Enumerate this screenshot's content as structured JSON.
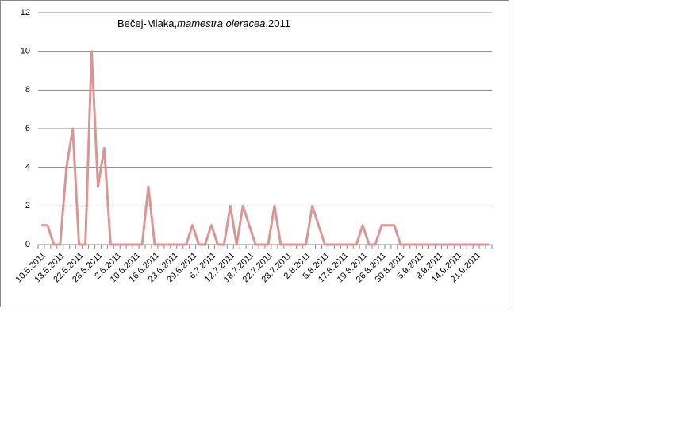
{
  "chart_data": {
    "type": "line",
    "title": [
      "Bečej-Mlaka,",
      "mamestra oleracea",
      ",2011"
    ],
    "categories": [
      "10.5.2011",
      null,
      null,
      "13.5.2011",
      null,
      null,
      "22.5.2011",
      null,
      null,
      "28.5.2011",
      null,
      null,
      "2.6.2011",
      null,
      null,
      "10.6.2011",
      null,
      null,
      "16.6.2011",
      null,
      null,
      "23.6.2011",
      null,
      null,
      "29.6.2011",
      null,
      null,
      "6.7.2011",
      null,
      null,
      "12.7.2011",
      null,
      null,
      "18.7.2011",
      null,
      null,
      "22.7.2011",
      null,
      null,
      "28.7.2011",
      null,
      null,
      "2.8.2011",
      null,
      null,
      "5.8.2011",
      null,
      null,
      "17.8.2011",
      null,
      null,
      "19.8.2011",
      null,
      null,
      "26.8.2011",
      null,
      null,
      "30.8.2011",
      null,
      null,
      "5.9.2011",
      null,
      null,
      "8.9.2011",
      null,
      null,
      "14.9.2011",
      null,
      null,
      "21.9.2011",
      null,
      null
    ],
    "values": [
      1,
      1,
      0,
      0,
      4,
      6,
      0,
      0,
      10,
      3,
      5,
      0,
      0,
      0,
      0,
      0,
      0,
      3,
      0,
      0,
      0,
      0,
      0,
      0,
      1,
      0,
      0,
      1,
      0,
      0,
      2,
      0,
      2,
      1,
      0,
      0,
      0,
      2,
      0,
      0,
      0,
      0,
      0,
      2,
      1,
      0,
      0,
      0,
      0,
      0,
      0,
      1,
      0,
      0,
      1,
      1,
      1,
      0,
      0,
      0,
      0,
      0,
      0,
      0,
      0,
      0,
      0,
      0,
      0,
      0,
      0,
      0
    ],
    "color": "#d99694",
    "ylim": [
      0,
      12
    ],
    "yticks": [
      0,
      2,
      4,
      6,
      8,
      10,
      12
    ],
    "grid": true
  }
}
